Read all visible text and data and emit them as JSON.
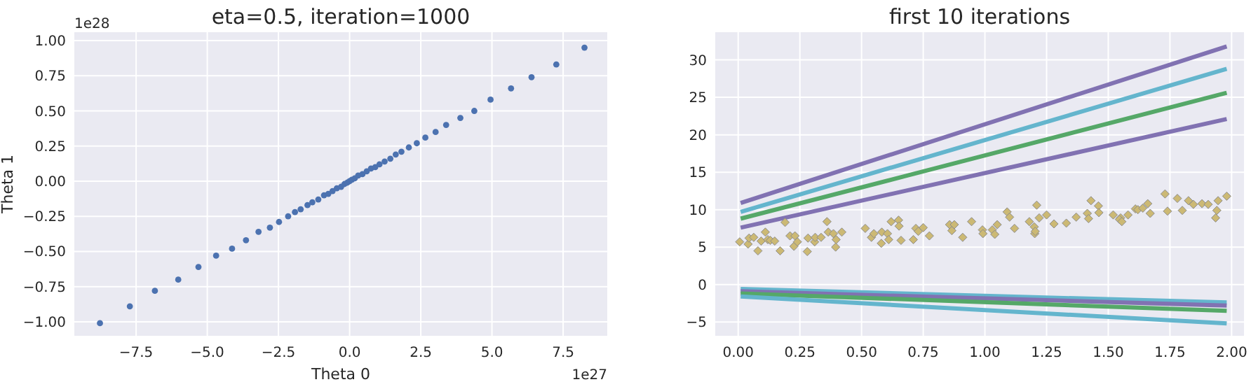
{
  "chart_data": [
    {
      "type": "scatter",
      "title": "eta=0.5, iteration=1000",
      "xlabel": "Theta 0",
      "ylabel": "Theta 1",
      "annotations": [
        "1e28",
        "1e27"
      ],
      "marker": "circle",
      "color": "#4c72b0",
      "grid": true,
      "x": [
        -8.77,
        -7.72,
        -6.84,
        -6.02,
        -5.31,
        -4.69,
        -4.13,
        -3.64,
        -3.2,
        -2.8,
        -2.48,
        -2.16,
        -1.92,
        -1.72,
        -1.48,
        -1.31,
        -1.1,
        -0.9,
        -0.75,
        -0.6,
        -0.45,
        -0.3,
        -0.18,
        -0.08,
        0,
        0.08,
        0.18,
        0.3,
        0.45,
        0.6,
        0.75,
        0.9,
        1.05,
        1.23,
        1.43,
        1.62,
        1.82,
        2.08,
        2.36,
        2.66,
        3.02,
        3.39,
        3.89,
        4.38,
        4.95,
        5.67,
        6.39,
        7.26,
        8.25
      ],
      "values": [
        -1.01,
        -0.89,
        -0.78,
        -0.7,
        -0.61,
        -0.53,
        -0.48,
        -0.42,
        -0.36,
        -0.33,
        -0.29,
        -0.25,
        -0.22,
        -0.2,
        -0.17,
        -0.15,
        -0.13,
        -0.1,
        -0.09,
        -0.07,
        -0.05,
        -0.04,
        -0.02,
        -0.01,
        0,
        0.01,
        0.02,
        0.04,
        0.05,
        0.07,
        0.09,
        0.1,
        0.12,
        0.14,
        0.16,
        0.19,
        0.21,
        0.24,
        0.27,
        0.31,
        0.35,
        0.4,
        0.45,
        0.5,
        0.58,
        0.66,
        0.74,
        0.83,
        0.95
      ],
      "xlim": [
        -9.67,
        9.05
      ],
      "xticks": [
        {
          "value": -7.5,
          "label": "−7.5"
        },
        {
          "value": -5,
          "label": "−5.0"
        },
        {
          "value": -2.5,
          "label": "−2.5"
        },
        {
          "value": 0,
          "label": "0.0"
        },
        {
          "value": 2.5,
          "label": "2.5"
        },
        {
          "value": 5,
          "label": "5.0"
        },
        {
          "value": 7.5,
          "label": "7.5"
        }
      ],
      "ylim": [
        -1.1,
        1.06
      ],
      "yticks": [
        {
          "value": -1,
          "label": "−1.00"
        },
        {
          "value": -0.75,
          "label": "−0.75"
        },
        {
          "value": -0.5,
          "label": "−0.50"
        },
        {
          "value": -0.25,
          "label": "−0.25"
        },
        {
          "value": 0,
          "label": "0.00"
        },
        {
          "value": 0.25,
          "label": "0.25"
        },
        {
          "value": 0.5,
          "label": "0.50"
        },
        {
          "value": 0.75,
          "label": "0.75"
        },
        {
          "value": 1,
          "label": "1.00"
        }
      ]
    },
    {
      "type": "line",
      "title": "first 10 iterations",
      "grid": true,
      "line_style": "solid",
      "series": [
        {
          "color": "#8172b2",
          "x": [
            0.01,
            1.98
          ],
          "values": [
            10.9,
            31.8
          ]
        },
        {
          "color": "#64b5cd",
          "x": [
            0.01,
            1.98
          ],
          "values": [
            9.7,
            28.8
          ]
        },
        {
          "color": "#55a868",
          "x": [
            0.01,
            1.98
          ],
          "values": [
            8.8,
            25.6
          ]
        },
        {
          "color": "#8172b2",
          "x": [
            0.01,
            1.98
          ],
          "values": [
            7.6,
            22.1
          ]
        },
        {
          "color": "#64b5cd",
          "x": [
            0.01,
            1.98
          ],
          "values": [
            -0.6,
            -2.4
          ]
        },
        {
          "color": "#8172b2",
          "x": [
            0.01,
            1.98
          ],
          "values": [
            -0.9,
            -2.8
          ]
        },
        {
          "color": "#55a868",
          "x": [
            0.01,
            1.98
          ],
          "values": [
            -1.2,
            -3.5
          ]
        },
        {
          "color": "#64b5cd",
          "x": [
            0.01,
            1.98
          ],
          "values": [
            -1.6,
            -5.2
          ]
        },
        {
          "type": "scatter",
          "marker": "diamond",
          "color": "#ccb974",
          "x": [
            0.006,
            0.04,
            0.044,
            0.063,
            0.08,
            0.093,
            0.11,
            0.12,
            0.13,
            0.148,
            0.17,
            0.19,
            0.21,
            0.23,
            0.226,
            0.24,
            0.28,
            0.283,
            0.31,
            0.312,
            0.336,
            0.36,
            0.365,
            0.386,
            0.395,
            0.397,
            0.42,
            0.515,
            0.54,
            0.55,
            0.58,
            0.582,
            0.605,
            0.61,
            0.62,
            0.65,
            0.652,
            0.66,
            0.71,
            0.72,
            0.73,
            0.75,
            0.775,
            0.857,
            0.866,
            0.876,
            0.91,
            0.946,
            0.99,
            0.992,
            1.03,
            1.04,
            1.05,
            1.09,
            1.1,
            1.12,
            1.18,
            1.2,
            1.202,
            1.204,
            1.21,
            1.22,
            1.25,
            1.28,
            1.33,
            1.37,
            1.415,
            1.42,
            1.43,
            1.46,
            1.462,
            1.52,
            1.55,
            1.545,
            1.555,
            1.58,
            1.61,
            1.62,
            1.64,
            1.66,
            1.67,
            1.73,
            1.74,
            1.78,
            1.8,
            1.825,
            1.845,
            1.88,
            1.905,
            1.935,
            1.94,
            1.945,
            1.98
          ],
          "values": [
            5.7,
            5.4,
            6.2,
            6.3,
            4.5,
            5.8,
            7.0,
            6.0,
            5.9,
            5.8,
            4.5,
            8.3,
            6.5,
            6.5,
            5.1,
            5.7,
            4.4,
            6.2,
            5.7,
            6.3,
            6.3,
            8.4,
            7.0,
            6.8,
            5.0,
            6.0,
            7.0,
            7.5,
            6.3,
            6.8,
            5.5,
            7.0,
            6.8,
            6.0,
            8.4,
            8.6,
            7.8,
            5.9,
            6.0,
            7.5,
            7.1,
            7.6,
            6.5,
            8.0,
            7.2,
            8.0,
            6.3,
            8.4,
            7.3,
            6.8,
            7.3,
            6.7,
            8.0,
            9.7,
            9.0,
            7.5,
            8.4,
            7.7,
            6.8,
            7.1,
            10.6,
            8.9,
            9.3,
            8.1,
            8.2,
            9.0,
            9.5,
            8.8,
            11.2,
            10.5,
            9.6,
            9.3,
            8.9,
            8.7,
            8.4,
            9.3,
            10.1,
            10.0,
            10.2,
            10.8,
            9.5,
            12.1,
            9.8,
            11.5,
            9.9,
            11.2,
            10.7,
            10.8,
            10.7,
            8.9,
            9.9,
            11.2,
            11.8
          ]
        }
      ],
      "xlim": [
        -0.093,
        2.05
      ],
      "xticks": [
        {
          "value": 0,
          "label": "0.00"
        },
        {
          "value": 0.25,
          "label": "0.25"
        },
        {
          "value": 0.5,
          "label": "0.50"
        },
        {
          "value": 0.75,
          "label": "0.75"
        },
        {
          "value": 1,
          "label": "1.00"
        },
        {
          "value": 1.25,
          "label": "1.25"
        },
        {
          "value": 1.5,
          "label": "1.50"
        },
        {
          "value": 1.75,
          "label": "1.75"
        },
        {
          "value": 2,
          "label": "2.00"
        }
      ],
      "ylim": [
        -6.85,
        33.7
      ],
      "yticks": [
        {
          "value": -5,
          "label": "−5"
        },
        0,
        5,
        10,
        15,
        20,
        25,
        30
      ]
    }
  ]
}
